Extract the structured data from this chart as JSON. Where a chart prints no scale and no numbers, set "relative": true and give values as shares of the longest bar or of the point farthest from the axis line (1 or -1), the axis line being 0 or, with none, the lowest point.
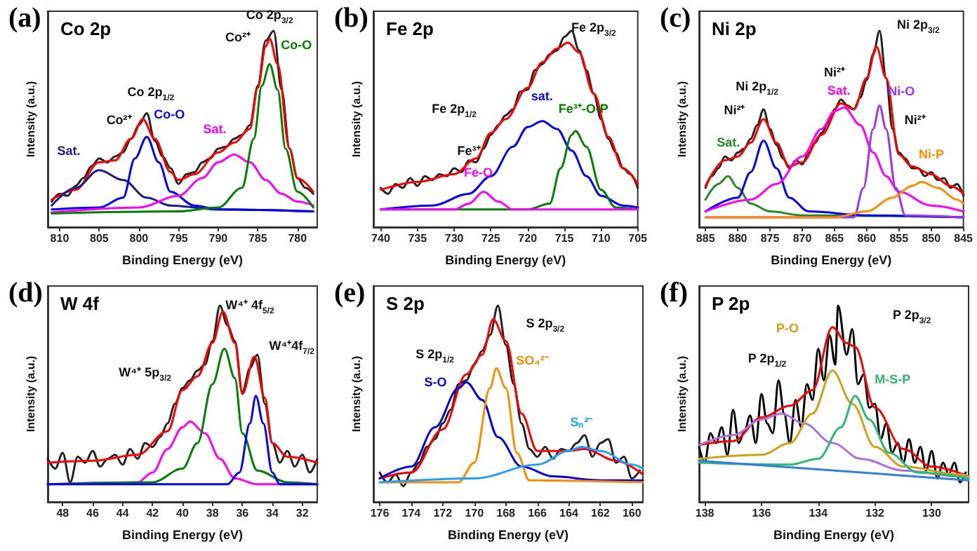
{
  "chart_data": [
    {
      "type": "line",
      "title": "(a)",
      "subtitle": "Co 2p",
      "xlabel": "Binding Energy (eV)",
      "ylabel": "Intensity (a.u.)",
      "relative": true,
      "marker": "none",
      "line_style": "solid",
      "legend": false,
      "grid": false,
      "xlim": [
        811.5,
        777.5
      ],
      "xticks": [
        810,
        805,
        800,
        795,
        790,
        785,
        780
      ],
      "annotations": [
        "Co 2p$_{1/2}$",
        "Co²⁺",
        "Co 2p$_{3/2}$",
        "Co²⁺"
      ],
      "series": [
        {
          "color": "#222222",
          "x": [
            811,
            810,
            809,
            808,
            807,
            806,
            805,
            804,
            803,
            802,
            801,
            800,
            799,
            798,
            797,
            796,
            795,
            794,
            793,
            792,
            791,
            790,
            789,
            788,
            787,
            786,
            785,
            784,
            783,
            782,
            781,
            780,
            779,
            778
          ],
          "values": [
            0.13,
            0.17,
            0.16,
            0.21,
            0.25,
            0.31,
            0.35,
            0.33,
            0.36,
            0.38,
            0.45,
            0.52,
            0.58,
            0.44,
            0.36,
            0.3,
            0.22,
            0.27,
            0.28,
            0.33,
            0.35,
            0.4,
            0.41,
            0.45,
            0.47,
            0.52,
            0.72,
            0.95,
            1.0,
            0.7,
            0.4,
            0.25,
            0.2,
            0.17
          ]
        },
        {
          "color": "#ff0000",
          "x": [
            811,
            808,
            805,
            803,
            801,
            799.5,
            798,
            796,
            795,
            793,
            790,
            788,
            786,
            785,
            784,
            783.5,
            782.5,
            781,
            780,
            778
          ],
          "values": [
            0.14,
            0.19,
            0.33,
            0.34,
            0.45,
            0.55,
            0.45,
            0.28,
            0.24,
            0.27,
            0.38,
            0.43,
            0.5,
            0.71,
            0.92,
            0.96,
            0.83,
            0.4,
            0.25,
            0.18
          ]
        },
        {
          "name": "Sat.",
          "color": "#1a1a8c",
          "x": [
            811,
            808,
            805,
            802,
            799,
            796,
            790,
            778
          ],
          "values": [
            0.11,
            0.2,
            0.29,
            0.24,
            0.15,
            0.11,
            0.09,
            0.08
          ]
        },
        {
          "name": "Co-O",
          "color": "#0000ff",
          "x": [
            811,
            805,
            802,
            800.5,
            799,
            797.5,
            796,
            793,
            790,
            778
          ],
          "values": [
            0.09,
            0.1,
            0.15,
            0.35,
            0.46,
            0.33,
            0.18,
            0.11,
            0.09,
            0.08
          ]
        },
        {
          "name": "Sat.",
          "color": "#ff00ff",
          "x": [
            811,
            800,
            795,
            792,
            790,
            788,
            786,
            784,
            782,
            780,
            778
          ],
          "values": [
            0.075,
            0.1,
            0.16,
            0.25,
            0.33,
            0.37,
            0.33,
            0.24,
            0.17,
            0.13,
            0.11
          ]
        },
        {
          "name": "Co-O",
          "color": "#008000",
          "x": [
            811,
            795,
            790,
            787,
            785.5,
            784.5,
            783.5,
            782.5,
            781.5,
            780,
            778
          ],
          "values": [
            0.07,
            0.08,
            0.1,
            0.2,
            0.45,
            0.72,
            0.83,
            0.7,
            0.4,
            0.18,
            0.1
          ]
        }
      ]
    },
    {
      "type": "line",
      "title": "(b)",
      "subtitle": "Fe 2p",
      "xlabel": "Binding Energy (eV)",
      "ylabel": "Intensity (a.u.)",
      "relative": true,
      "marker": "none",
      "line_style": "solid",
      "legend": false,
      "grid": false,
      "xlim": [
        741,
        705
      ],
      "xticks": [
        740,
        735,
        730,
        725,
        720,
        715,
        710,
        705
      ],
      "annotations": [
        "Fe 2p$_{3/2}$",
        "Fe 2p$_{1/2}$",
        "Fe³⁺"
      ],
      "series": [
        {
          "color": "#222222",
          "x": [
            740,
            739,
            738,
            737,
            736,
            735,
            734,
            733,
            732,
            731,
            730,
            729,
            728,
            727,
            726,
            725,
            724,
            723,
            722,
            721,
            720,
            719,
            718,
            717,
            716,
            715,
            714,
            713,
            712,
            711,
            710,
            709,
            708,
            707,
            706,
            705
          ],
          "values": [
            0.2,
            0.17,
            0.22,
            0.2,
            0.25,
            0.21,
            0.26,
            0.24,
            0.27,
            0.26,
            0.3,
            0.28,
            0.34,
            0.33,
            0.4,
            0.47,
            0.52,
            0.57,
            0.6,
            0.69,
            0.7,
            0.8,
            0.83,
            0.88,
            0.9,
            0.97,
            1.0,
            0.9,
            0.8,
            0.68,
            0.55,
            0.45,
            0.38,
            0.3,
            0.27,
            0.2
          ]
        },
        {
          "color": "#ff0000",
          "x": [
            740,
            735,
            730,
            727,
            725,
            723,
            720,
            718,
            716,
            714.5,
            713,
            711,
            709,
            707,
            705
          ],
          "values": [
            0.19,
            0.23,
            0.27,
            0.35,
            0.48,
            0.55,
            0.71,
            0.84,
            0.91,
            0.94,
            0.89,
            0.68,
            0.46,
            0.3,
            0.22
          ]
        },
        {
          "name": "sat.",
          "color": "#0000ff",
          "x": [
            740,
            733,
            728,
            725,
            722,
            720,
            718,
            716,
            714,
            712,
            710,
            707,
            705
          ],
          "values": [
            0.09,
            0.11,
            0.17,
            0.26,
            0.41,
            0.51,
            0.54,
            0.5,
            0.39,
            0.26,
            0.16,
            0.11,
            0.1
          ]
        },
        {
          "name": "Fe³⁺-O-P",
          "color": "#008000",
          "x": [
            740,
            720,
            717,
            715.5,
            714,
            713.5,
            712,
            710,
            708,
            705
          ],
          "values": [
            0.09,
            0.09,
            0.12,
            0.3,
            0.47,
            0.49,
            0.41,
            0.19,
            0.1,
            0.09
          ]
        },
        {
          "name": "Fe-O",
          "color": "#ff00ff",
          "x": [
            740,
            730,
            728,
            726,
            724,
            722,
            705
          ],
          "values": [
            0.09,
            0.09,
            0.12,
            0.18,
            0.13,
            0.09,
            0.09
          ]
        }
      ]
    },
    {
      "type": "line",
      "title": "(c)",
      "subtitle": "Ni 2p",
      "xlabel": "Binding Energy (eV)",
      "ylabel": "Intensity (a.u.)",
      "relative": true,
      "marker": "none",
      "line_style": "solid",
      "legend": false,
      "grid": false,
      "xlim": [
        886,
        845
      ],
      "xticks": [
        885,
        880,
        875,
        870,
        865,
        860,
        855,
        850,
        845
      ],
      "annotations": [
        "Ni 2p$_{3/2}$",
        "Ni 2p$_{1/2}$",
        "Ni²⁺",
        "Ni²⁺",
        "Ni²⁺"
      ],
      "series": [
        {
          "color": "#222222",
          "x": [
            885,
            884,
            883,
            882,
            881,
            880,
            879,
            878,
            877,
            876,
            875,
            874,
            873,
            872,
            871,
            870,
            869,
            868,
            867,
            866,
            865,
            864,
            863,
            862,
            861,
            860,
            859,
            858,
            857,
            856,
            855,
            854,
            853,
            852,
            851,
            850,
            849,
            848,
            847,
            846,
            845
          ],
          "values": [
            0.2,
            0.26,
            0.3,
            0.36,
            0.34,
            0.38,
            0.4,
            0.45,
            0.52,
            0.6,
            0.5,
            0.42,
            0.35,
            0.3,
            0.34,
            0.32,
            0.38,
            0.43,
            0.48,
            0.53,
            0.6,
            0.65,
            0.62,
            0.6,
            0.66,
            0.75,
            0.88,
            1.0,
            0.76,
            0.5,
            0.38,
            0.35,
            0.3,
            0.3,
            0.26,
            0.28,
            0.24,
            0.25,
            0.2,
            0.22,
            0.16
          ]
        },
        {
          "color": "#ff0000",
          "x": [
            885,
            882,
            880,
            878,
            876,
            874,
            872,
            870,
            867,
            864,
            862,
            860,
            858.5,
            857,
            855,
            853,
            850,
            847,
            845
          ],
          "values": [
            0.21,
            0.34,
            0.36,
            0.43,
            0.55,
            0.43,
            0.31,
            0.33,
            0.47,
            0.63,
            0.6,
            0.76,
            0.92,
            0.76,
            0.37,
            0.31,
            0.27,
            0.21,
            0.17
          ]
        },
        {
          "name": "Sat.",
          "color": "#228b22",
          "x": [
            885,
            883,
            881.5,
            880,
            878,
            875,
            870,
            845
          ],
          "values": [
            0.14,
            0.22,
            0.26,
            0.2,
            0.12,
            0.08,
            0.06,
            0.05
          ]
        },
        {
          "color": "#0000ff",
          "x": [
            885,
            880,
            878,
            876,
            874,
            872,
            869,
            860,
            845
          ],
          "values": [
            0.08,
            0.15,
            0.28,
            0.44,
            0.3,
            0.15,
            0.08,
            0.06,
            0.05
          ]
        },
        {
          "name": "Sat.",
          "color": "#ff00ff",
          "x": [
            885,
            878,
            874,
            870,
            867,
            865,
            863.5,
            861,
            859,
            857,
            855,
            850,
            845
          ],
          "values": [
            0.08,
            0.14,
            0.22,
            0.36,
            0.5,
            0.59,
            0.61,
            0.52,
            0.38,
            0.26,
            0.18,
            0.11,
            0.08
          ]
        },
        {
          "name": "Ni-O",
          "color": "#9933ff",
          "x": [
            885,
            862,
            860.5,
            859,
            858,
            857,
            855.5,
            854,
            845
          ],
          "values": [
            0.05,
            0.05,
            0.2,
            0.5,
            0.62,
            0.5,
            0.2,
            0.06,
            0.05
          ]
        },
        {
          "name": "Ni-P",
          "color": "#ff8c00",
          "x": [
            885,
            865,
            860,
            856,
            853,
            851.5,
            849,
            846,
            845
          ],
          "values": [
            0.05,
            0.05,
            0.08,
            0.15,
            0.21,
            0.23,
            0.2,
            0.14,
            0.12
          ]
        }
      ]
    },
    {
      "type": "line",
      "title": "(d)",
      "subtitle": "W 4f",
      "xlabel": "Binding Energy (eV)",
      "ylabel": "Intensity (a.u.)",
      "relative": true,
      "marker": "none",
      "line_style": "solid",
      "legend": false,
      "grid": false,
      "xlim": [
        49,
        31
      ],
      "xticks": [
        48,
        46,
        44,
        42,
        40,
        38,
        36,
        34,
        32
      ],
      "annotations": [
        "W⁴⁺ 4f$_{5/2}$",
        "W⁴⁺4f$_{7/2}$",
        "W⁴⁺ 5p$_{3/2}$"
      ],
      "series": [
        {
          "color": "#222222",
          "x": [
            49,
            48.5,
            48,
            47.5,
            47,
            46.5,
            46,
            45.5,
            45,
            44.5,
            44,
            43.5,
            43,
            42.5,
            42,
            41.5,
            41,
            40.5,
            40,
            39.5,
            39,
            38.5,
            38,
            37.5,
            37,
            36.5,
            36,
            35.5,
            35,
            34.5,
            34,
            33.5,
            33,
            32.5,
            32,
            31.5,
            31
          ],
          "values": [
            0.22,
            0.17,
            0.25,
            0.1,
            0.23,
            0.2,
            0.26,
            0.18,
            0.22,
            0.24,
            0.19,
            0.27,
            0.22,
            0.3,
            0.28,
            0.33,
            0.4,
            0.5,
            0.58,
            0.62,
            0.67,
            0.7,
            0.82,
            1.0,
            0.9,
            0.82,
            0.56,
            0.68,
            0.75,
            0.5,
            0.3,
            0.2,
            0.26,
            0.18,
            0.24,
            0.15,
            0.22
          ]
        },
        {
          "color": "#ff0000",
          "x": [
            49,
            46,
            43,
            41,
            40,
            39,
            38,
            37.3,
            36.5,
            36,
            35.2,
            34.5,
            34,
            33,
            31
          ],
          "values": [
            0.2,
            0.21,
            0.24,
            0.36,
            0.57,
            0.64,
            0.81,
            0.97,
            0.81,
            0.55,
            0.74,
            0.53,
            0.3,
            0.23,
            0.2
          ]
        },
        {
          "color": "#ff00ff",
          "x": [
            49,
            43,
            42,
            41,
            40,
            39.5,
            38.5,
            37.5,
            36.5,
            35,
            31
          ],
          "values": [
            0.09,
            0.1,
            0.15,
            0.27,
            0.38,
            0.41,
            0.35,
            0.22,
            0.12,
            0.09,
            0.09
          ]
        },
        {
          "color": "#008000",
          "x": [
            49,
            42,
            40,
            39,
            38,
            37.2,
            36.5,
            36,
            35,
            33,
            31
          ],
          "values": [
            0.09,
            0.1,
            0.17,
            0.3,
            0.6,
            0.78,
            0.63,
            0.35,
            0.16,
            0.1,
            0.09
          ]
        },
        {
          "color": "#0000ff",
          "x": [
            49,
            37,
            36.2,
            35.5,
            35.1,
            34.6,
            34,
            33.5,
            31
          ],
          "values": [
            0.09,
            0.09,
            0.15,
            0.4,
            0.54,
            0.4,
            0.15,
            0.09,
            0.09
          ]
        }
      ]
    },
    {
      "type": "line",
      "title": "(e)",
      "subtitle": "S 2p",
      "xlabel": "Binding Energy (eV)",
      "ylabel": "Intensity (a.u.)",
      "relative": true,
      "marker": "none",
      "line_style": "solid",
      "legend": false,
      "grid": false,
      "xlim": [
        176.4,
        159.3
      ],
      "xticks": [
        176,
        174,
        172,
        170,
        168,
        166,
        164,
        162,
        160
      ],
      "annotations": [
        "S 2p$_{3/2}$",
        "S 2p$_{1/2}$"
      ],
      "series": [
        {
          "color": "#222222",
          "x": [
            176,
            175.5,
            175,
            174.5,
            174,
            173.5,
            173,
            172.5,
            172,
            171.5,
            171,
            170.5,
            170,
            169.5,
            169,
            168.5,
            168,
            167.5,
            167,
            166.5,
            166,
            165.5,
            165,
            164.5,
            164,
            163.5,
            163,
            162.5,
            162,
            161.5,
            161,
            160.5,
            160,
            159.5
          ],
          "values": [
            0.15,
            0.1,
            0.14,
            0.08,
            0.15,
            0.2,
            0.28,
            0.32,
            0.4,
            0.47,
            0.6,
            0.62,
            0.7,
            0.77,
            0.85,
            1.0,
            0.8,
            0.6,
            0.4,
            0.27,
            0.23,
            0.28,
            0.22,
            0.27,
            0.26,
            0.3,
            0.34,
            0.23,
            0.3,
            0.32,
            0.2,
            0.23,
            0.12,
            0.16
          ]
        },
        {
          "color": "#ff0000",
          "x": [
            176,
            174,
            172,
            170.5,
            169.5,
            168.8,
            168,
            167,
            166,
            164,
            163,
            161,
            159.3
          ],
          "values": [
            0.12,
            0.15,
            0.37,
            0.65,
            0.75,
            0.93,
            0.82,
            0.45,
            0.26,
            0.26,
            0.27,
            0.21,
            0.14
          ]
        },
        {
          "name": "S-O",
          "color": "#0000ee",
          "x": [
            176,
            174,
            172.5,
            171,
            170.5,
            169.5,
            168.5,
            167,
            165,
            162,
            159.3
          ],
          "values": [
            0.12,
            0.18,
            0.38,
            0.58,
            0.61,
            0.52,
            0.33,
            0.18,
            0.13,
            0.11,
            0.11
          ]
        },
        {
          "name": "SO₄²⁻",
          "color": "#ff8c00",
          "x": [
            176,
            171,
            170,
            169,
            168.6,
            168,
            167.3,
            166.5,
            159.3
          ],
          "values": [
            0.1,
            0.1,
            0.2,
            0.58,
            0.68,
            0.58,
            0.25,
            0.11,
            0.1
          ]
        },
        {
          "name": "Sₙ²⁻",
          "color": "#1fa0ff",
          "x": [
            176,
            170,
            166,
            164,
            163.2,
            162,
            160,
            159.3
          ],
          "values": [
            0.1,
            0.12,
            0.19,
            0.26,
            0.28,
            0.26,
            0.19,
            0.17
          ]
        }
      ]
    },
    {
      "type": "line",
      "title": "(f)",
      "subtitle": "P 2p",
      "xlabel": "Binding Energy (eV)",
      "ylabel": "Intensity (a.u.)",
      "relative": true,
      "marker": "none",
      "line_style": "solid",
      "legend": false,
      "grid": false,
      "xlim": [
        138.2,
        128.7
      ],
      "xticks": [
        138,
        136,
        134,
        132,
        130
      ],
      "annotations": [
        "P 2p$_{3/2}$",
        "P 2p$_{1/2}$"
      ],
      "series": [
        {
          "color": "#000000",
          "x": [
            138.2,
            138,
            137.8,
            137.6,
            137.4,
            137.2,
            137,
            136.8,
            136.6,
            136.4,
            136.2,
            136,
            135.8,
            135.6,
            135.4,
            135.2,
            135,
            134.8,
            134.6,
            134.4,
            134.2,
            134,
            133.8,
            133.6,
            133.4,
            133.3,
            133,
            132.8,
            132.6,
            132.4,
            132.2,
            132,
            131.8,
            131.6,
            131.4,
            131.2,
            131,
            130.8,
            130.6,
            130.4,
            130.2,
            130,
            129.8,
            129.6,
            129.4,
            129.2,
            129,
            128.8
          ],
          "values": [
            0.28,
            0.2,
            0.35,
            0.3,
            0.38,
            0.24,
            0.47,
            0.3,
            0.36,
            0.44,
            0.3,
            0.55,
            0.4,
            0.35,
            0.62,
            0.45,
            0.3,
            0.52,
            0.38,
            0.6,
            0.52,
            0.78,
            0.62,
            0.85,
            0.7,
            1.0,
            0.75,
            0.88,
            0.6,
            0.65,
            0.48,
            0.5,
            0.32,
            0.4,
            0.25,
            0.3,
            0.2,
            0.32,
            0.2,
            0.28,
            0.16,
            0.26,
            0.12,
            0.2,
            0.14,
            0.2,
            0.1,
            0.15
          ]
        },
        {
          "color": "#ff0000",
          "x": [
            138.2,
            137,
            136,
            135,
            134.2,
            133.5,
            133,
            132.7,
            132,
            131,
            130,
            128.7
          ],
          "values": [
            0.29,
            0.31,
            0.43,
            0.49,
            0.57,
            0.89,
            0.81,
            0.79,
            0.48,
            0.27,
            0.18,
            0.13
          ]
        },
        {
          "color": "#b070e0",
          "x": [
            138.2,
            137,
            136,
            135.3,
            134.5,
            133.5,
            132.5,
            131,
            129,
            128.7
          ],
          "values": [
            0.29,
            0.34,
            0.42,
            0.45,
            0.4,
            0.3,
            0.22,
            0.16,
            0.13,
            0.12
          ]
        },
        {
          "name": "P-O",
          "color": "#d4a017",
          "x": [
            138.2,
            136,
            135,
            134.2,
            133.5,
            132.8,
            132,
            131,
            129,
            128.7
          ],
          "values": [
            0.22,
            0.24,
            0.3,
            0.45,
            0.67,
            0.5,
            0.28,
            0.18,
            0.14,
            0.13
          ]
        },
        {
          "name": "M-S-P",
          "color": "#2eb872",
          "x": [
            138.2,
            135,
            134,
            133.2,
            132.7,
            132.2,
            131.5,
            130.5,
            128.7
          ],
          "values": [
            0.2,
            0.19,
            0.22,
            0.38,
            0.54,
            0.42,
            0.25,
            0.15,
            0.12
          ]
        },
        {
          "color": "#3080e0",
          "x": [
            138.2,
            128.7
          ],
          "values": [
            0.21,
            0.11
          ]
        }
      ]
    }
  ]
}
